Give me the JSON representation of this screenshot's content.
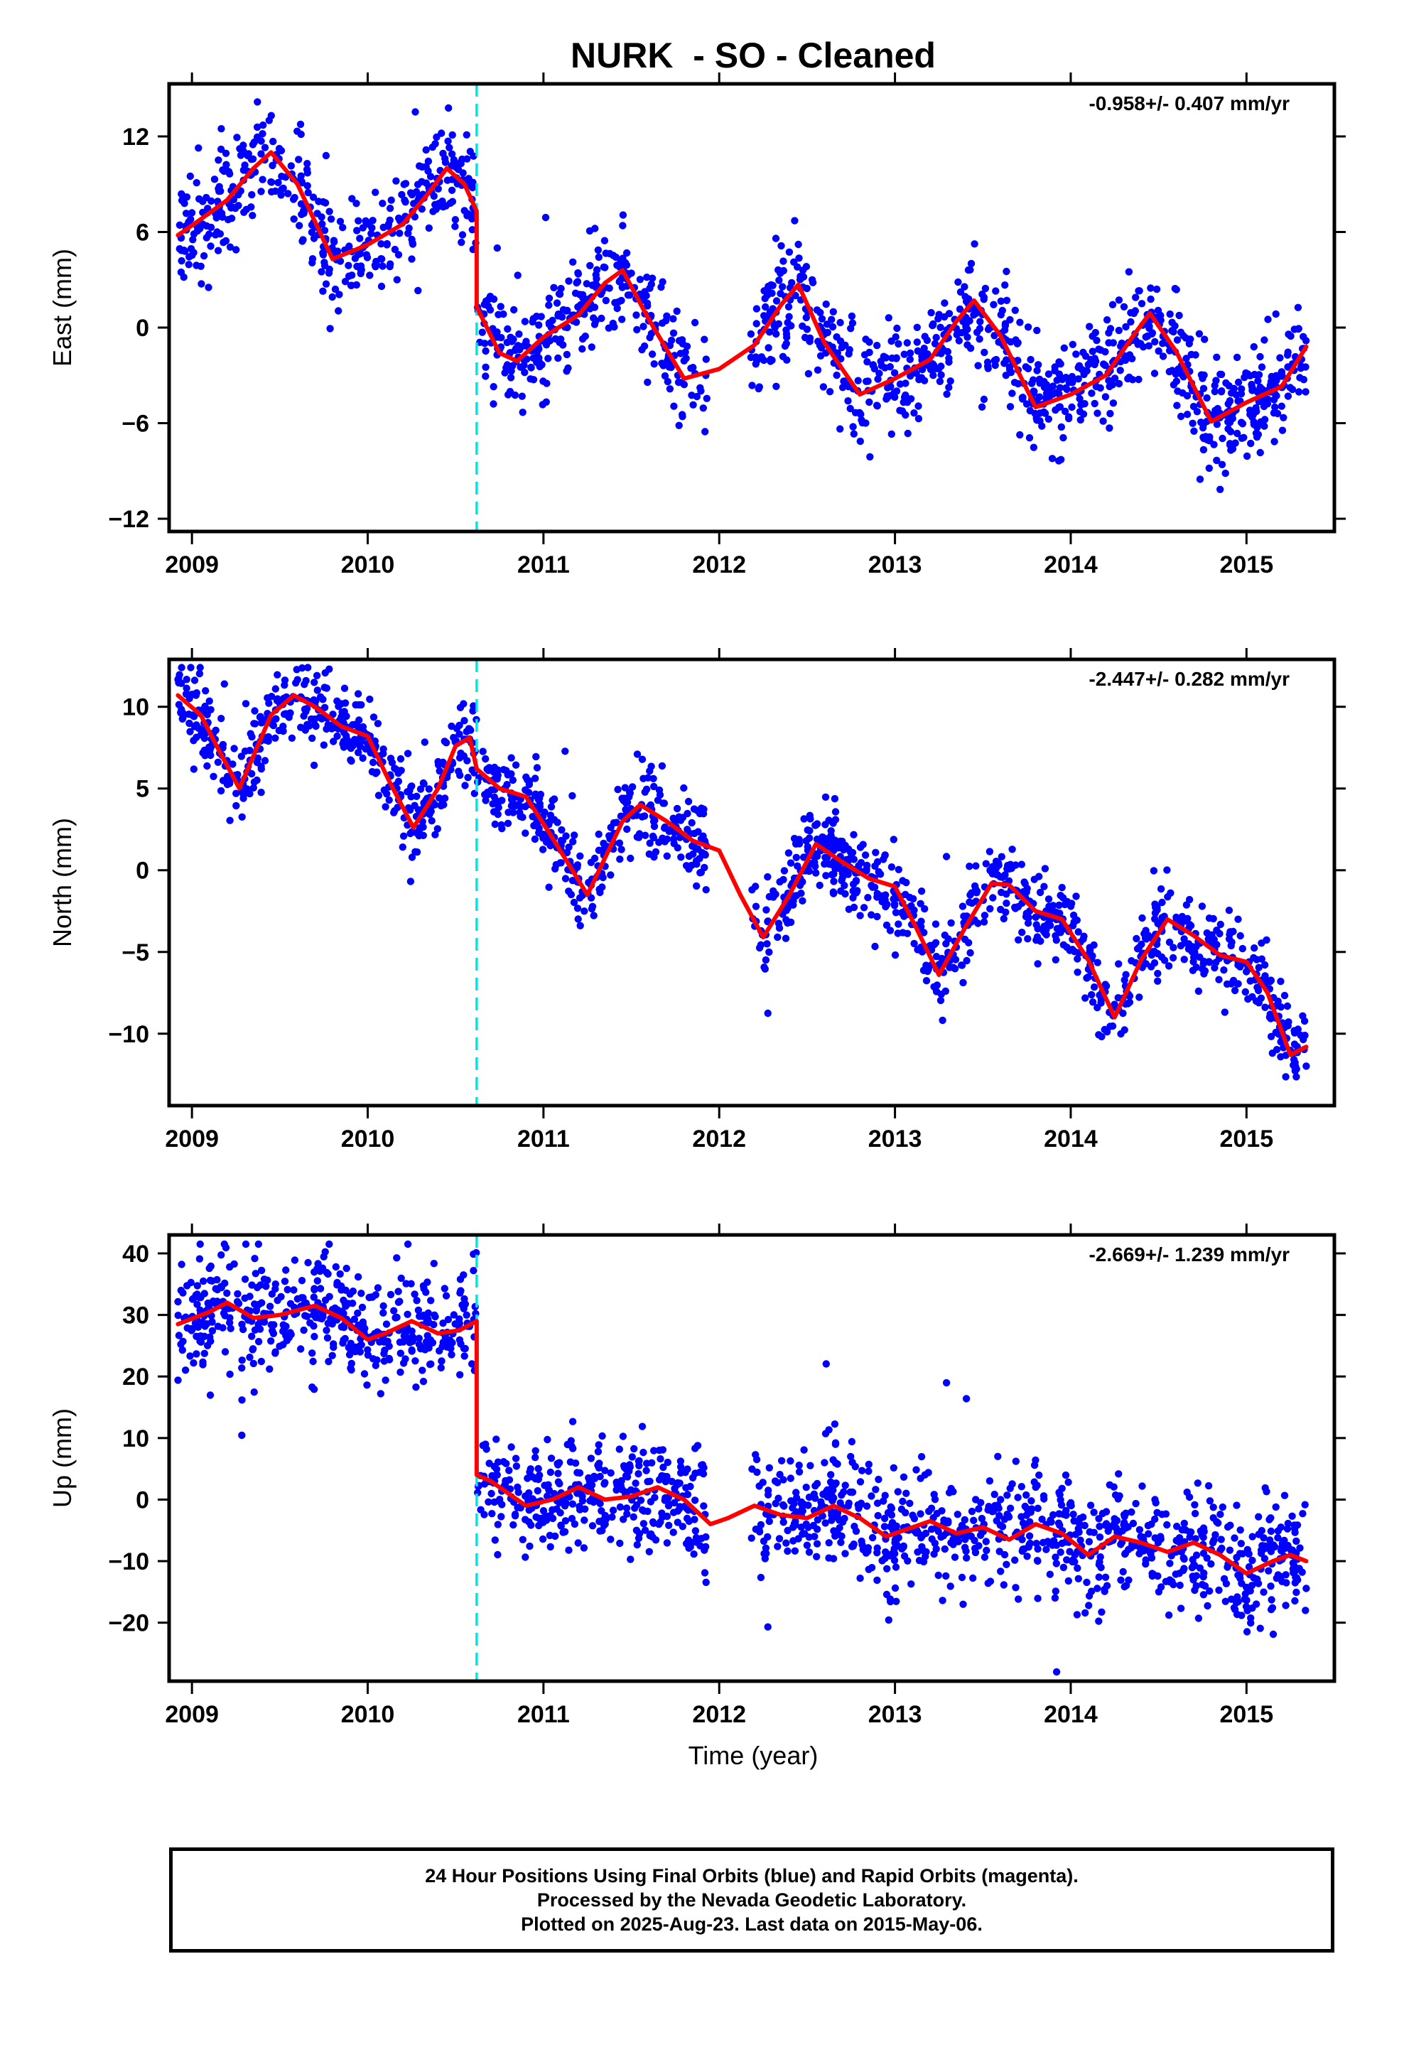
{
  "figure": {
    "title": "NURK  - SO - Cleaned",
    "xlabel": "Time (year)",
    "footer": [
      "24 Hour Positions Using Final Orbits (blue) and Rapid Orbits (magenta).",
      "Processed by the Nevada Geodetic Laboratory.",
      "Plotted on 2025-Aug-23. Last data on 2015-May-06."
    ],
    "colors": {
      "points": "#0000ff",
      "model": "#ff0000",
      "offset_line": "#00e5e5",
      "frame": "#000000"
    }
  },
  "chart_data": [
    {
      "type": "scatter",
      "ylabel": "East (mm)",
      "rate": "-0.958+/- 0.407 mm/yr",
      "xlim": [
        2008.87,
        2015.5
      ],
      "ylim": [
        -12.8,
        15.3
      ],
      "yticks": [
        12,
        6,
        0,
        -6,
        -12
      ],
      "xticks": [
        2009,
        2010,
        2011,
        2012,
        2013,
        2014,
        2015
      ],
      "step_epoch": 2010.62,
      "data_range": [
        2008.92,
        2015.34
      ],
      "gap": [
        2011.93,
        2012.18
      ],
      "model": {
        "x": [
          2008.92,
          2009.05,
          2009.2,
          2009.35,
          2009.45,
          2009.6,
          2009.8,
          2010.0,
          2010.2,
          2010.35,
          2010.45,
          2010.55,
          2010.6,
          2010.62,
          2010.62,
          2010.75,
          2010.85,
          2011.0,
          2011.2,
          2011.35,
          2011.45,
          2011.6,
          2011.8,
          2012.0,
          2012.2,
          2012.35,
          2012.45,
          2012.6,
          2012.8,
          2013.0,
          2013.2,
          2013.35,
          2013.45,
          2013.6,
          2013.8,
          2014.0,
          2014.2,
          2014.35,
          2014.45,
          2014.6,
          2014.8,
          2015.0,
          2015.2,
          2015.34
        ],
        "y": [
          5.8,
          6.8,
          8.0,
          10.0,
          11.0,
          9.0,
          4.3,
          5.2,
          6.5,
          8.5,
          10.0,
          9.0,
          7.8,
          7.3,
          1.3,
          -1.6,
          -2.1,
          -0.6,
          0.8,
          2.8,
          3.6,
          0.5,
          -3.2,
          -2.6,
          -1.1,
          1.4,
          2.7,
          -1.0,
          -4.2,
          -3.2,
          -2.0,
          0.4,
          1.7,
          -0.5,
          -5.0,
          -4.2,
          -3.0,
          -0.6,
          0.9,
          -1.5,
          -5.9,
          -4.7,
          -3.7,
          -1.2
        ]
      },
      "scatter": {
        "count": 1650,
        "sigma": 1.6,
        "outlier_rate": 0.03,
        "outlier_sigma": 3.5,
        "clip": [
          -12.4,
          14.5
        ]
      }
    },
    {
      "type": "scatter",
      "ylabel": "North (mm)",
      "rate": "-2.447+/- 0.282 mm/yr",
      "xlim": [
        2008.87,
        2015.5
      ],
      "ylim": [
        -14.4,
        12.9
      ],
      "yticks": [
        10,
        5,
        0,
        -5,
        -10
      ],
      "xticks": [
        2009,
        2010,
        2011,
        2012,
        2013,
        2014,
        2015
      ],
      "step_epoch": 2010.62,
      "data_range": [
        2008.92,
        2015.34
      ],
      "gap": [
        2011.93,
        2012.18
      ],
      "model": {
        "x": [
          2008.92,
          2009.05,
          2009.15,
          2009.27,
          2009.45,
          2009.58,
          2009.7,
          2009.85,
          2010.0,
          2010.12,
          2010.26,
          2010.4,
          2010.5,
          2010.58,
          2010.62,
          2010.75,
          2010.9,
          2011.05,
          2011.25,
          2011.45,
          2011.55,
          2011.7,
          2011.85,
          2012.0,
          2012.12,
          2012.25,
          2012.4,
          2012.55,
          2012.7,
          2012.85,
          2013.0,
          2013.12,
          2013.25,
          2013.4,
          2013.55,
          2013.65,
          2013.8,
          2013.95,
          2014.1,
          2014.25,
          2014.4,
          2014.55,
          2014.7,
          2014.85,
          2015.0,
          2015.12,
          2015.25,
          2015.34
        ],
        "y": [
          10.7,
          9.5,
          7.4,
          5.0,
          9.5,
          10.7,
          10.0,
          8.8,
          8.2,
          5.5,
          2.6,
          5.0,
          7.6,
          8.1,
          6.2,
          5.0,
          4.5,
          2.0,
          -1.5,
          3.0,
          4.0,
          3.0,
          1.8,
          1.2,
          -1.5,
          -4.1,
          -1.5,
          1.6,
          0.5,
          -0.5,
          -1.0,
          -3.5,
          -6.4,
          -3.5,
          -0.8,
          -0.9,
          -2.5,
          -3.0,
          -5.5,
          -9.0,
          -5.5,
          -3.0,
          -4.0,
          -5.2,
          -5.6,
          -7.5,
          -11.3,
          -10.8
        ]
      },
      "scatter": {
        "count": 1650,
        "sigma": 1.2,
        "outlier_rate": 0.03,
        "outlier_sigma": 2.7,
        "clip": [
          -13.7,
          12.4
        ]
      }
    },
    {
      "type": "scatter",
      "ylabel": "Up (mm)",
      "rate": "-2.669+/- 1.239 mm/yr",
      "xlim": [
        2008.87,
        2015.5
      ],
      "ylim": [
        -29.5,
        43
      ],
      "yticks": [
        40,
        30,
        20,
        10,
        0,
        -10,
        -20
      ],
      "xticks": [
        2009,
        2010,
        2011,
        2012,
        2013,
        2014,
        2015
      ],
      "step_epoch": 2010.62,
      "data_range": [
        2008.92,
        2015.34
      ],
      "gap": [
        2011.93,
        2012.18
      ],
      "model": {
        "x": [
          2008.92,
          2009.1,
          2009.2,
          2009.35,
          2009.5,
          2009.7,
          2009.85,
          2010.0,
          2010.1,
          2010.25,
          2010.4,
          2010.52,
          2010.62,
          2010.62,
          2010.7,
          2010.9,
          2011.05,
          2011.2,
          2011.35,
          2011.5,
          2011.65,
          2011.8,
          2011.95,
          2012.05,
          2012.2,
          2012.35,
          2012.5,
          2012.65,
          2012.8,
          2012.95,
          2013.05,
          2013.2,
          2013.35,
          2013.5,
          2013.65,
          2013.8,
          2013.95,
          2014.1,
          2014.25,
          2014.4,
          2014.55,
          2014.7,
          2014.85,
          2015.0,
          2015.15,
          2015.25,
          2015.34
        ],
        "y": [
          28.5,
          30.5,
          32.0,
          29.5,
          30.0,
          31.5,
          29.5,
          26.0,
          27.0,
          29.0,
          27.0,
          27.5,
          29.0,
          4.0,
          3.0,
          -1.0,
          0.0,
          2.0,
          0.0,
          0.5,
          2.0,
          0.0,
          -4.0,
          -3.0,
          -1.0,
          -2.5,
          -3.0,
          -1.0,
          -3.0,
          -6.0,
          -5.0,
          -3.5,
          -5.5,
          -4.5,
          -6.5,
          -4.0,
          -5.5,
          -9.0,
          -6.0,
          -7.0,
          -8.5,
          -7.0,
          -9.0,
          -12.0,
          -10.0,
          -9.0,
          -10.0
        ]
      },
      "scatter": {
        "count": 1750,
        "sigma": 4.5,
        "outlier_rate": 0.03,
        "outlier_sigma": 10,
        "clip": [
          -28,
          41.5
        ]
      }
    }
  ]
}
